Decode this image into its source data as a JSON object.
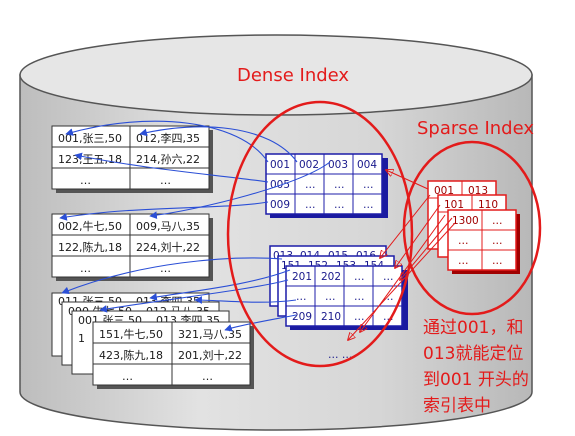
{
  "labels": {
    "dense": "Dense Index",
    "sparse": "Sparse Index",
    "note_lines": [
      "通过001，和",
      "013就能定位",
      "到001 开头的",
      "索引表中"
    ]
  },
  "data_tables": [
    {
      "rows": [
        [
          "001,张三,50",
          "012,李四,35"
        ],
        [
          "123,王五,18",
          "214,孙六,22"
        ],
        [
          "…",
          "…"
        ]
      ]
    },
    {
      "rows": [
        [
          "002,牛七,50",
          "009,马八,35"
        ],
        [
          "122,陈九,18",
          "224,刘十,22"
        ],
        [
          "…",
          "…"
        ]
      ]
    },
    {
      "rows": [
        [
          "151,牛七,50",
          "321,马八,35"
        ],
        [
          "423,陈九,18",
          "201,刘十,22"
        ],
        [
          "…",
          "…"
        ]
      ],
      "shadow_fragments": [
        "011,张三,50",
        "013,李四,35",
        "090,牛七,50",
        "012,马八,35",
        "001,张三,50",
        "013,李四,35",
        "1"
      ]
    }
  ],
  "dense_tables": [
    {
      "rows": [
        [
          "001",
          "002",
          "003",
          "004"
        ],
        [
          "005",
          "…",
          "…",
          "…"
        ],
        [
          "009",
          "…",
          "…",
          "…"
        ]
      ]
    },
    {
      "back_headers": [
        "013",
        "014",
        "015",
        "016"
      ],
      "back_fragments": [
        "151",
        "152",
        "153",
        "154"
      ],
      "rows": [
        [
          "201",
          "202",
          "…",
          "…"
        ],
        [
          "…",
          "…",
          "…",
          "…"
        ],
        [
          "209",
          "210",
          "…",
          "…"
        ]
      ],
      "trailing": "… …"
    }
  ],
  "sparse_tables": {
    "front_rows": [
      [
        "001",
        "013"
      ],
      [
        "…",
        "…"
      ],
      [
        "…",
        "…"
      ]
    ],
    "middle_rows": [
      [
        "101",
        "110"
      ]
    ],
    "back_rows": [
      [
        "1300",
        "…"
      ],
      [
        "…",
        "…"
      ],
      [
        "…",
        "…"
      ]
    ]
  },
  "colors": {
    "red": "#e31b1b",
    "blue": "#1c1ca8",
    "cylinder_fill": "#d4d4d4",
    "arrow_blue": "#2b4fd6"
  }
}
